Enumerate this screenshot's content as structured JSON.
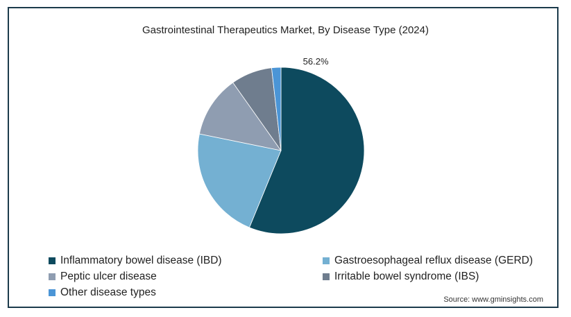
{
  "chart_data": {
    "type": "pie",
    "title": "Gastrointestinal Therapeutics Market, By Disease Type (2024)",
    "slices": [
      {
        "name": "Inflammatory bowel disease (IBD)",
        "value": 56.2,
        "color": "#0d4a5e",
        "label": "56.2%"
      },
      {
        "name": "Gastroesophageal reflux disease (GERD)",
        "value": 22.0,
        "color": "#74b0d2",
        "label": ""
      },
      {
        "name": "Peptic ulcer disease",
        "value": 12.0,
        "color": "#8f9db1",
        "label": ""
      },
      {
        "name": "Irritable bowel syndrome (IBS)",
        "value": 8.0,
        "color": "#6f7d8e",
        "label": ""
      },
      {
        "name": "Other disease types",
        "value": 1.8,
        "color": "#4b95d6",
        "label": ""
      }
    ],
    "legend_position": "bottom",
    "source": "Source: www.gminsights.com"
  }
}
